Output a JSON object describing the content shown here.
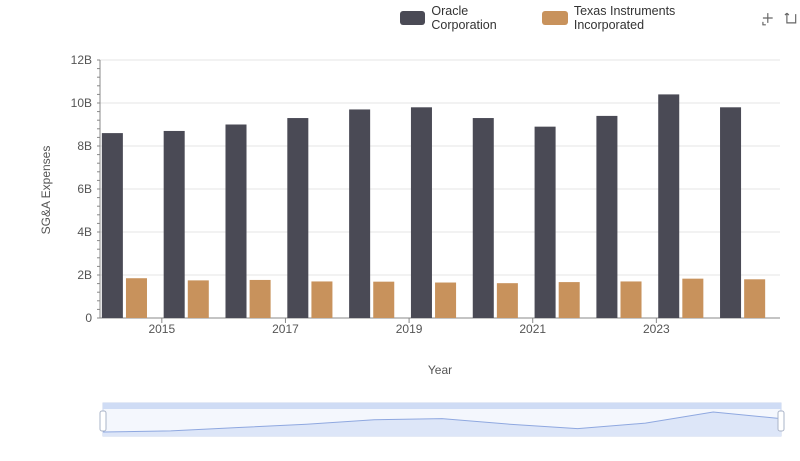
{
  "legend": {
    "series1_label": "Oracle Corporation",
    "series2_label": "Texas Instruments Incorporated"
  },
  "toolbar": {
    "zoom_icon": "zoom-icon",
    "reset_icon": "restore-icon"
  },
  "colors": {
    "oracle": "#4a4a55",
    "ti": "#c8925c",
    "grid": "#e6e6e6",
    "slider_fill": "#dde6f8",
    "slider_line": "#8fa8e0"
  },
  "chart_data": {
    "type": "bar",
    "xlabel": "Year",
    "ylabel": "SG&A Expenses",
    "x": [
      2014,
      2015,
      2016,
      2017,
      2018,
      2019,
      2020,
      2021,
      2022,
      2023,
      2024
    ],
    "x_tick_labels": [
      "2015",
      "2017",
      "2019",
      "2021",
      "2023"
    ],
    "ylim": [
      0,
      12000000000
    ],
    "y_tick_labels": [
      "0",
      "2B",
      "4B",
      "6B",
      "8B",
      "10B",
      "12B"
    ],
    "grid": true,
    "legend_position": "top-right",
    "series": [
      {
        "name": "Oracle Corporation",
        "values": [
          8600000000,
          8700000000,
          9000000000,
          9300000000,
          9700000000,
          9800000000,
          9300000000,
          8900000000,
          9400000000,
          10400000000,
          9800000000
        ]
      },
      {
        "name": "Texas Instruments Incorporated",
        "values": [
          1850000000,
          1750000000,
          1770000000,
          1700000000,
          1690000000,
          1650000000,
          1620000000,
          1670000000,
          1700000000,
          1830000000,
          1800000000
        ]
      }
    ]
  }
}
